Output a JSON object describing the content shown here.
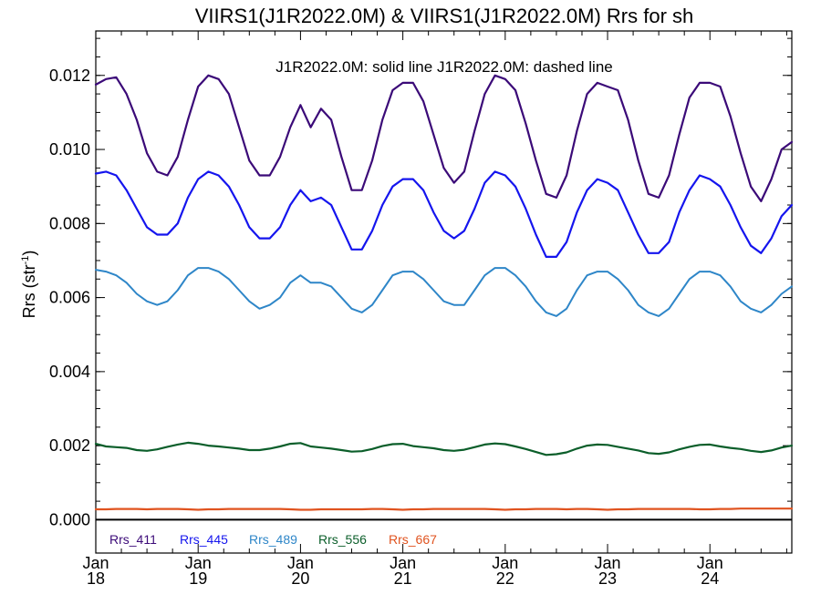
{
  "chart_data": {
    "type": "line",
    "title": "VIIRS1(J1R2022.0M) & VIIRS1(J1R2022.0M)  Rrs for sh",
    "annotation": "J1R2022.0M: solid line   J1R2022.0M: dashed line",
    "ylabel": "Rrs (str",
    "ylabel_sup": "-1",
    "ylabel_close": ")",
    "ylim": [
      -0.0009,
      0.0132
    ],
    "xlim": [
      18,
      24.8
    ],
    "yticks": [
      0.0,
      0.002,
      0.004,
      0.006,
      0.008,
      0.01,
      0.012
    ],
    "ytick_labels": [
      "0.000",
      "0.002",
      "0.004",
      "0.006",
      "0.008",
      "0.010",
      "0.012"
    ],
    "xticks": [
      {
        "x": 18,
        "month": "Jan",
        "day": "18"
      },
      {
        "x": 19,
        "month": "Jan",
        "day": "19"
      },
      {
        "x": 20,
        "month": "Jan",
        "day": "20"
      },
      {
        "x": 21,
        "month": "Jan",
        "day": "21"
      },
      {
        "x": 22,
        "month": "Jan",
        "day": "22"
      },
      {
        "x": 23,
        "month": "Jan",
        "day": "23"
      },
      {
        "x": 24,
        "month": "Jan",
        "day": "24"
      }
    ],
    "zero_line": 0.0,
    "x": [
      18.0,
      18.1,
      18.2,
      18.3,
      18.4,
      18.5,
      18.6,
      18.7,
      18.8,
      18.9,
      19.0,
      19.1,
      19.2,
      19.3,
      19.4,
      19.5,
      19.6,
      19.7,
      19.8,
      19.9,
      20.0,
      20.1,
      20.2,
      20.3,
      20.4,
      20.5,
      20.6,
      20.7,
      20.8,
      20.9,
      21.0,
      21.1,
      21.2,
      21.3,
      21.4,
      21.5,
      21.6,
      21.7,
      21.8,
      21.9,
      22.0,
      22.1,
      22.2,
      22.3,
      22.4,
      22.5,
      22.6,
      22.7,
      22.8,
      22.9,
      23.0,
      23.1,
      23.2,
      23.3,
      23.4,
      23.5,
      23.6,
      23.7,
      23.8,
      23.9,
      24.0,
      24.1,
      24.2,
      24.3,
      24.4,
      24.5,
      24.6,
      24.7,
      24.8
    ],
    "series": [
      {
        "name": "Rrs_411",
        "color": "#3b0a78",
        "width": 2.2,
        "values": [
          0.01175,
          0.0119,
          0.01195,
          0.0115,
          0.0108,
          0.0099,
          0.0094,
          0.0093,
          0.0098,
          0.0108,
          0.0117,
          0.012,
          0.0119,
          0.0115,
          0.0106,
          0.0097,
          0.0093,
          0.0093,
          0.0098,
          0.0106,
          0.0112,
          0.0106,
          0.0111,
          0.0108,
          0.0098,
          0.0089,
          0.0089,
          0.0097,
          0.0108,
          0.0116,
          0.0118,
          0.0118,
          0.0113,
          0.0104,
          0.0095,
          0.0091,
          0.0094,
          0.0105,
          0.0115,
          0.012,
          0.0119,
          0.0116,
          0.0107,
          0.0097,
          0.0088,
          0.0087,
          0.0093,
          0.0105,
          0.0115,
          0.0118,
          0.0117,
          0.0116,
          0.0108,
          0.0097,
          0.0088,
          0.0087,
          0.0093,
          0.0104,
          0.0114,
          0.0118,
          0.0118,
          0.0117,
          0.0109,
          0.0099,
          0.009,
          0.0086,
          0.0092,
          0.01,
          0.0102
        ]
      },
      {
        "name": "Rrs_445",
        "color": "#1515ee",
        "width": 2.2,
        "values": [
          0.00935,
          0.0094,
          0.0093,
          0.0089,
          0.0084,
          0.0079,
          0.0077,
          0.0077,
          0.008,
          0.0087,
          0.0092,
          0.0094,
          0.0093,
          0.009,
          0.0085,
          0.0079,
          0.0076,
          0.0076,
          0.0079,
          0.0085,
          0.0089,
          0.0086,
          0.0087,
          0.0085,
          0.0079,
          0.0073,
          0.0073,
          0.0078,
          0.0085,
          0.009,
          0.0092,
          0.0092,
          0.0089,
          0.0083,
          0.0078,
          0.0076,
          0.0078,
          0.0084,
          0.0091,
          0.0094,
          0.0093,
          0.009,
          0.0084,
          0.0077,
          0.0071,
          0.0071,
          0.0075,
          0.0083,
          0.0089,
          0.0092,
          0.0091,
          0.0089,
          0.0083,
          0.0077,
          0.0072,
          0.0072,
          0.0075,
          0.0083,
          0.0089,
          0.0093,
          0.0092,
          0.009,
          0.0085,
          0.0079,
          0.0074,
          0.0072,
          0.0076,
          0.0082,
          0.0085
        ]
      },
      {
        "name": "Rrs_489",
        "color": "#2e86c8",
        "width": 2.0,
        "values": [
          0.00675,
          0.0067,
          0.0066,
          0.0064,
          0.0061,
          0.0059,
          0.0058,
          0.0059,
          0.0062,
          0.0066,
          0.0068,
          0.0068,
          0.0067,
          0.0065,
          0.0062,
          0.0059,
          0.0057,
          0.0058,
          0.006,
          0.0064,
          0.0066,
          0.0064,
          0.0064,
          0.0063,
          0.006,
          0.0057,
          0.0056,
          0.0058,
          0.0062,
          0.0066,
          0.0067,
          0.0067,
          0.0065,
          0.0062,
          0.0059,
          0.0058,
          0.0058,
          0.0062,
          0.0066,
          0.0068,
          0.0068,
          0.0066,
          0.0063,
          0.0059,
          0.0056,
          0.0055,
          0.0057,
          0.0062,
          0.0066,
          0.0067,
          0.0067,
          0.0065,
          0.0062,
          0.0058,
          0.0056,
          0.0055,
          0.0057,
          0.0061,
          0.0065,
          0.0067,
          0.0067,
          0.0066,
          0.0063,
          0.0059,
          0.0057,
          0.0056,
          0.0058,
          0.0061,
          0.0063
        ]
      },
      {
        "name": "Rrs_556",
        "color": "#0b5e2a",
        "width": 2.2,
        "values": [
          0.00205,
          0.00198,
          0.00196,
          0.00194,
          0.00188,
          0.00186,
          0.0019,
          0.00197,
          0.00203,
          0.00208,
          0.00205,
          0.002,
          0.00198,
          0.00195,
          0.00192,
          0.00188,
          0.00188,
          0.00192,
          0.00198,
          0.00205,
          0.00207,
          0.00198,
          0.00195,
          0.00192,
          0.00188,
          0.00184,
          0.00185,
          0.00191,
          0.00199,
          0.00204,
          0.00205,
          0.00199,
          0.00196,
          0.00193,
          0.00188,
          0.00186,
          0.00189,
          0.00196,
          0.00203,
          0.00206,
          0.00204,
          0.00198,
          0.00191,
          0.00183,
          0.00175,
          0.00177,
          0.00182,
          0.00192,
          0.002,
          0.00203,
          0.00202,
          0.00197,
          0.00192,
          0.00187,
          0.0018,
          0.00178,
          0.00182,
          0.0019,
          0.00197,
          0.00202,
          0.00203,
          0.00198,
          0.00194,
          0.00191,
          0.00186,
          0.00183,
          0.00187,
          0.00195,
          0.002
        ]
      },
      {
        "name": "Rrs_667",
        "color": "#e0531f",
        "width": 2.2,
        "values": [
          0.00028,
          0.00028,
          0.00029,
          0.00029,
          0.00029,
          0.00028,
          0.00029,
          0.00029,
          0.00029,
          0.00028,
          0.00027,
          0.00028,
          0.00028,
          0.00029,
          0.00029,
          0.00029,
          0.00029,
          0.00029,
          0.00029,
          0.00028,
          0.00027,
          0.00027,
          0.00028,
          0.00028,
          0.00028,
          0.00028,
          0.00028,
          0.00029,
          0.00029,
          0.00028,
          0.00027,
          0.00028,
          0.00028,
          0.00029,
          0.00029,
          0.00029,
          0.00029,
          0.00029,
          0.00029,
          0.00028,
          0.00027,
          0.00028,
          0.00028,
          0.00029,
          0.00029,
          0.00029,
          0.00028,
          0.00029,
          0.00029,
          0.00028,
          0.00027,
          0.00028,
          0.00028,
          0.00029,
          0.00029,
          0.00029,
          0.00029,
          0.00029,
          0.00029,
          0.00028,
          0.00028,
          0.00029,
          0.00029,
          0.0003,
          0.0003,
          0.0003,
          0.0003,
          0.0003,
          0.0003
        ]
      }
    ]
  }
}
